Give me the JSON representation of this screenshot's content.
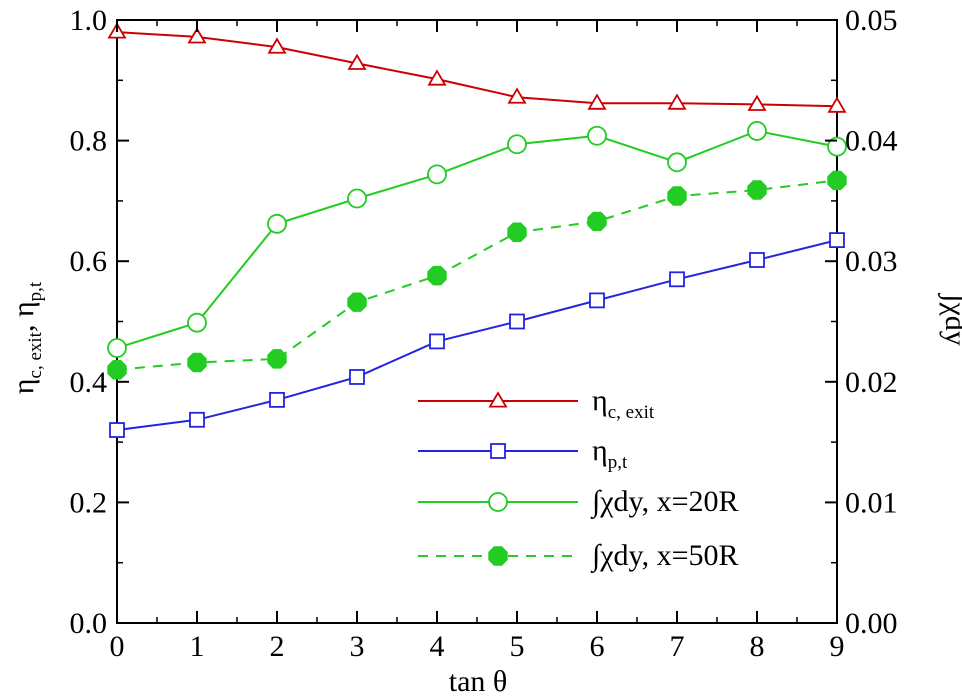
{
  "chart_data": {
    "type": "line",
    "x": [
      0,
      1,
      2,
      3,
      4,
      5,
      6,
      7,
      8,
      9
    ],
    "xlabel": "tan θ",
    "xlim": [
      0,
      9
    ],
    "xticks": [
      "0",
      "1",
      "2",
      "3",
      "4",
      "5",
      "6",
      "7",
      "8",
      "9"
    ],
    "ylabel_left": {
      "main1": "η",
      "sub1": "c, exit",
      "sep": ", ",
      "main2": "η",
      "sub2": "p,t"
    },
    "ylim_left": [
      0,
      1
    ],
    "yticks_left": [
      "0.0",
      "0.2",
      "0.4",
      "0.6",
      "0.8",
      "1.0"
    ],
    "ylabel_right": "∫χdy",
    "ylim_right": [
      0,
      0.05
    ],
    "yticks_right": [
      "0.00",
      "0.01",
      "0.02",
      "0.03",
      "0.04",
      "0.05"
    ],
    "grid": false,
    "legend_position": "lower-right",
    "series": [
      {
        "name": "η",
        "name_sub": "c, exit",
        "axis": "left",
        "color": "#cc0000",
        "marker": "triangle-open",
        "linestyle": "solid",
        "values": [
          0.98,
          0.972,
          0.955,
          0.928,
          0.902,
          0.872,
          0.862,
          0.862,
          0.86,
          0.857
        ]
      },
      {
        "name": "η",
        "name_sub": "p,t",
        "axis": "left",
        "color": "#2424e0",
        "marker": "square-open",
        "linestyle": "solid",
        "values": [
          0.32,
          0.337,
          0.37,
          0.408,
          0.467,
          0.5,
          0.535,
          0.57,
          0.602,
          0.635
        ]
      },
      {
        "name": "∫χdy, x=20R",
        "axis": "right",
        "color": "#22cc22",
        "marker": "circle-open",
        "linestyle": "solid",
        "values": [
          0.0228,
          0.0249,
          0.0331,
          0.0352,
          0.0372,
          0.0397,
          0.0404,
          0.0382,
          0.0408,
          0.0395
        ]
      },
      {
        "name": "∫χdy, x=50R",
        "axis": "right",
        "color": "#22cc22",
        "marker": "circle-filled",
        "linestyle": "dashed",
        "values": [
          0.021,
          0.0216,
          0.0219,
          0.0266,
          0.0288,
          0.0324,
          0.0333,
          0.0354,
          0.0359,
          0.0367
        ]
      }
    ]
  }
}
